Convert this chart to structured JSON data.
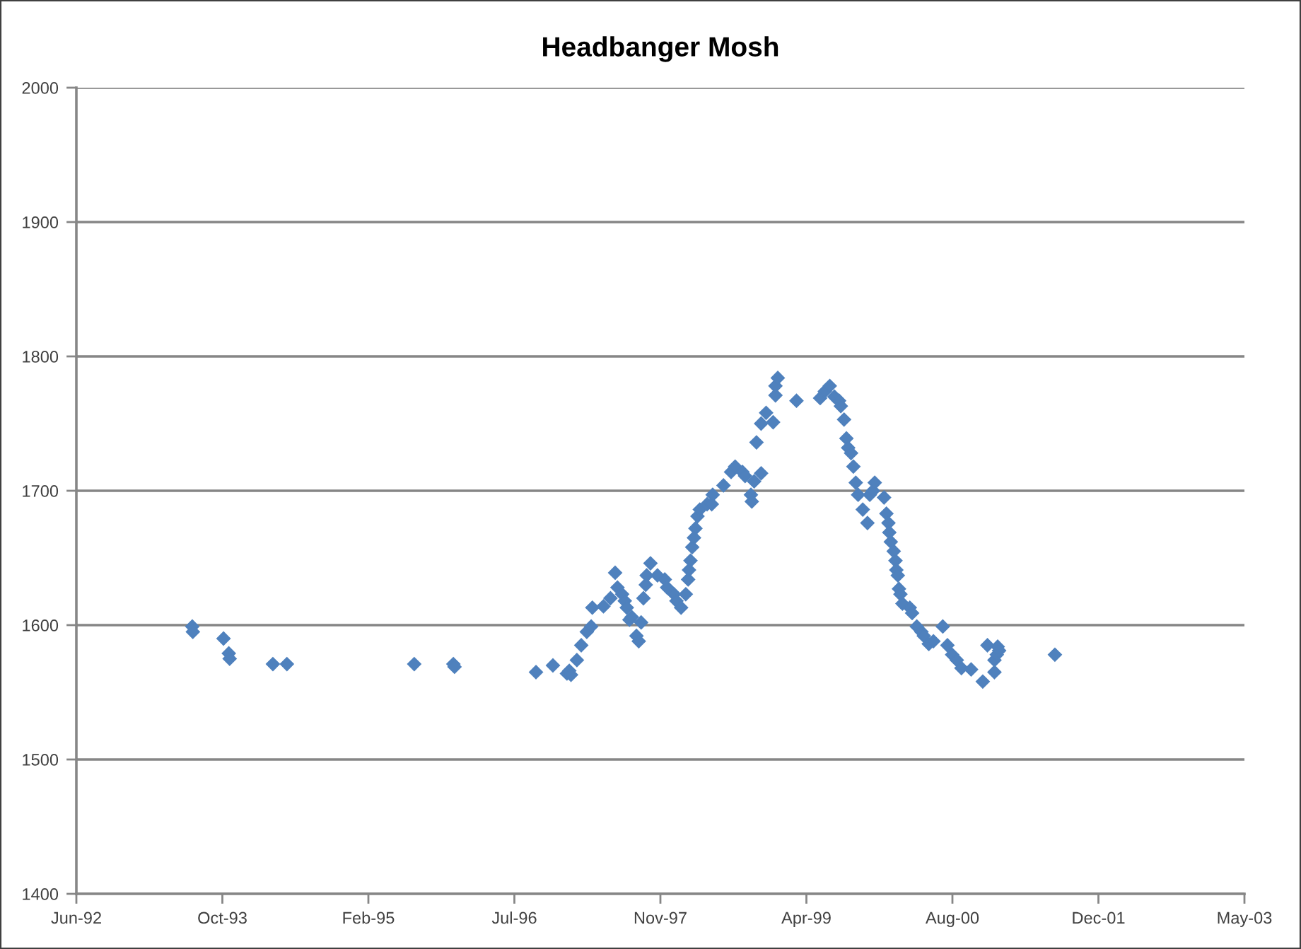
{
  "chart_data": {
    "type": "scatter",
    "title": "Headbanger Mosh",
    "color": "#4f81bd",
    "marker": "diamond",
    "grid": "y",
    "x": [
      "1993-07-03",
      "1993-07-05",
      "1993-10-18",
      "1993-11-05",
      "1993-11-08",
      "1994-04-05",
      "1994-05-23",
      "1995-08-02",
      "1995-12-14",
      "1995-12-18",
      "1996-09-22",
      "1996-11-19",
      "1997-01-06",
      "1997-01-14",
      "1997-01-20",
      "1997-02-09",
      "1997-02-24",
      "1997-03-15",
      "1997-03-30",
      "1997-04-03",
      "1997-05-11",
      "1997-06-04",
      "1997-06-20",
      "1997-06-28",
      "1997-07-14",
      "1997-07-23",
      "1997-07-30",
      "1997-08-08",
      "1997-08-16",
      "1997-09-01",
      "1997-09-09",
      "1997-09-17",
      "1997-09-25",
      "1997-10-03",
      "1997-10-06",
      "1997-10-19",
      "1997-11-12",
      "1997-12-07",
      "1997-12-15",
      "1998-01-08",
      "1998-01-16",
      "1998-02-01",
      "1998-02-17",
      "1998-02-25",
      "1998-02-28",
      "1998-03-05",
      "1998-03-11",
      "1998-03-17",
      "1998-03-22",
      "1998-03-29",
      "1998-04-06",
      "1998-05-01",
      "1998-05-17",
      "1998-05-20",
      "1998-06-26",
      "1998-07-22",
      "1998-08-05",
      "1998-08-30",
      "1998-09-08",
      "1998-09-28",
      "1998-10-01",
      "1998-10-09",
      "1998-10-17",
      "1998-11-02",
      "1998-11-02",
      "1998-11-19",
      "1998-12-13",
      "1998-12-21",
      "1998-12-21",
      "1998-12-29",
      "1999-03-03",
      "1999-05-23",
      "1999-06-08",
      "1999-06-25",
      "1999-07-11",
      "1999-07-27",
      "1999-08-02",
      "1999-08-13",
      "1999-08-21",
      "1999-08-27",
      "1999-09-06",
      "1999-09-14",
      "1999-09-22",
      "1999-09-30",
      "1999-10-16",
      "1999-11-01",
      "1999-11-09",
      "1999-11-20",
      "1999-11-26",
      "1999-12-28",
      "2000-01-05",
      "2000-01-12",
      "2000-01-15",
      "2000-01-20",
      "2000-01-30",
      "2000-02-05",
      "2000-02-08",
      "2000-02-13",
      "2000-02-17",
      "2000-02-22",
      "2000-02-29",
      "2000-03-25",
      "2000-04-02",
      "2000-04-18",
      "2000-05-04",
      "2000-05-12",
      "2000-05-29",
      "2000-06-14",
      "2000-07-16",
      "2000-08-01",
      "2000-08-17",
      "2000-09-02",
      "2000-09-18",
      "2000-10-21",
      "2000-11-30",
      "2000-12-16",
      "2001-01-09",
      "2001-01-09",
      "2001-01-17",
      "2001-01-20",
      "2001-01-25",
      "2001-08-04"
    ],
    "values": [
      1599,
      1595,
      1590,
      1579,
      1575,
      1571,
      1571,
      1571,
      1571,
      1569,
      1565,
      1570,
      1564,
      1566,
      1563,
      1574,
      1585,
      1595,
      1599,
      1613,
      1614,
      1620,
      1639,
      1628,
      1623,
      1618,
      1613,
      1604,
      1606,
      1592,
      1588,
      1602,
      1620,
      1630,
      1637,
      1646,
      1637,
      1634,
      1628,
      1623,
      1618,
      1613,
      1623,
      1634,
      1641,
      1648,
      1658,
      1665,
      1672,
      1681,
      1686,
      1690,
      1690,
      1697,
      1704,
      1714,
      1718,
      1714,
      1711,
      1697,
      1692,
      1707,
      1736,
      1750,
      1713,
      1758,
      1751,
      1771,
      1778,
      1784,
      1767,
      1769,
      1774,
      1778,
      1770,
      1767,
      1763,
      1753,
      1739,
      1732,
      1728,
      1718,
      1706,
      1697,
      1686,
      1676,
      1697,
      1700,
      1706,
      1695,
      1683,
      1676,
      1669,
      1662,
      1655,
      1648,
      1641,
      1637,
      1627,
      1623,
      1616,
      1613,
      1609,
      1599,
      1595,
      1592,
      1586,
      1588,
      1599,
      1585,
      1578,
      1574,
      1568,
      1567,
      1558,
      1585,
      1565,
      1574,
      1578,
      1584,
      1581,
      1578
    ],
    "xlim": [
      "1992-06-01",
      "2003-05-15"
    ],
    "xticks": [
      {
        "value": "1992-06-01",
        "label": "Jun-92"
      },
      {
        "value": "1993-10-14",
        "label": "Oct-93"
      },
      {
        "value": "1995-02-26",
        "label": "Feb-95"
      },
      {
        "value": "1996-07-10",
        "label": "Jul-96"
      },
      {
        "value": "1997-11-22",
        "label": "Nov-97"
      },
      {
        "value": "1999-04-06",
        "label": "Apr-99"
      },
      {
        "value": "2000-08-18",
        "label": "Aug-00"
      },
      {
        "value": "2001-12-31",
        "label": "Dec-01"
      },
      {
        "value": "2003-05-15",
        "label": "May-03"
      }
    ],
    "ylim": [
      1400,
      2000
    ],
    "yticks": [
      1400,
      1500,
      1600,
      1700,
      1800,
      1900,
      2000
    ]
  }
}
